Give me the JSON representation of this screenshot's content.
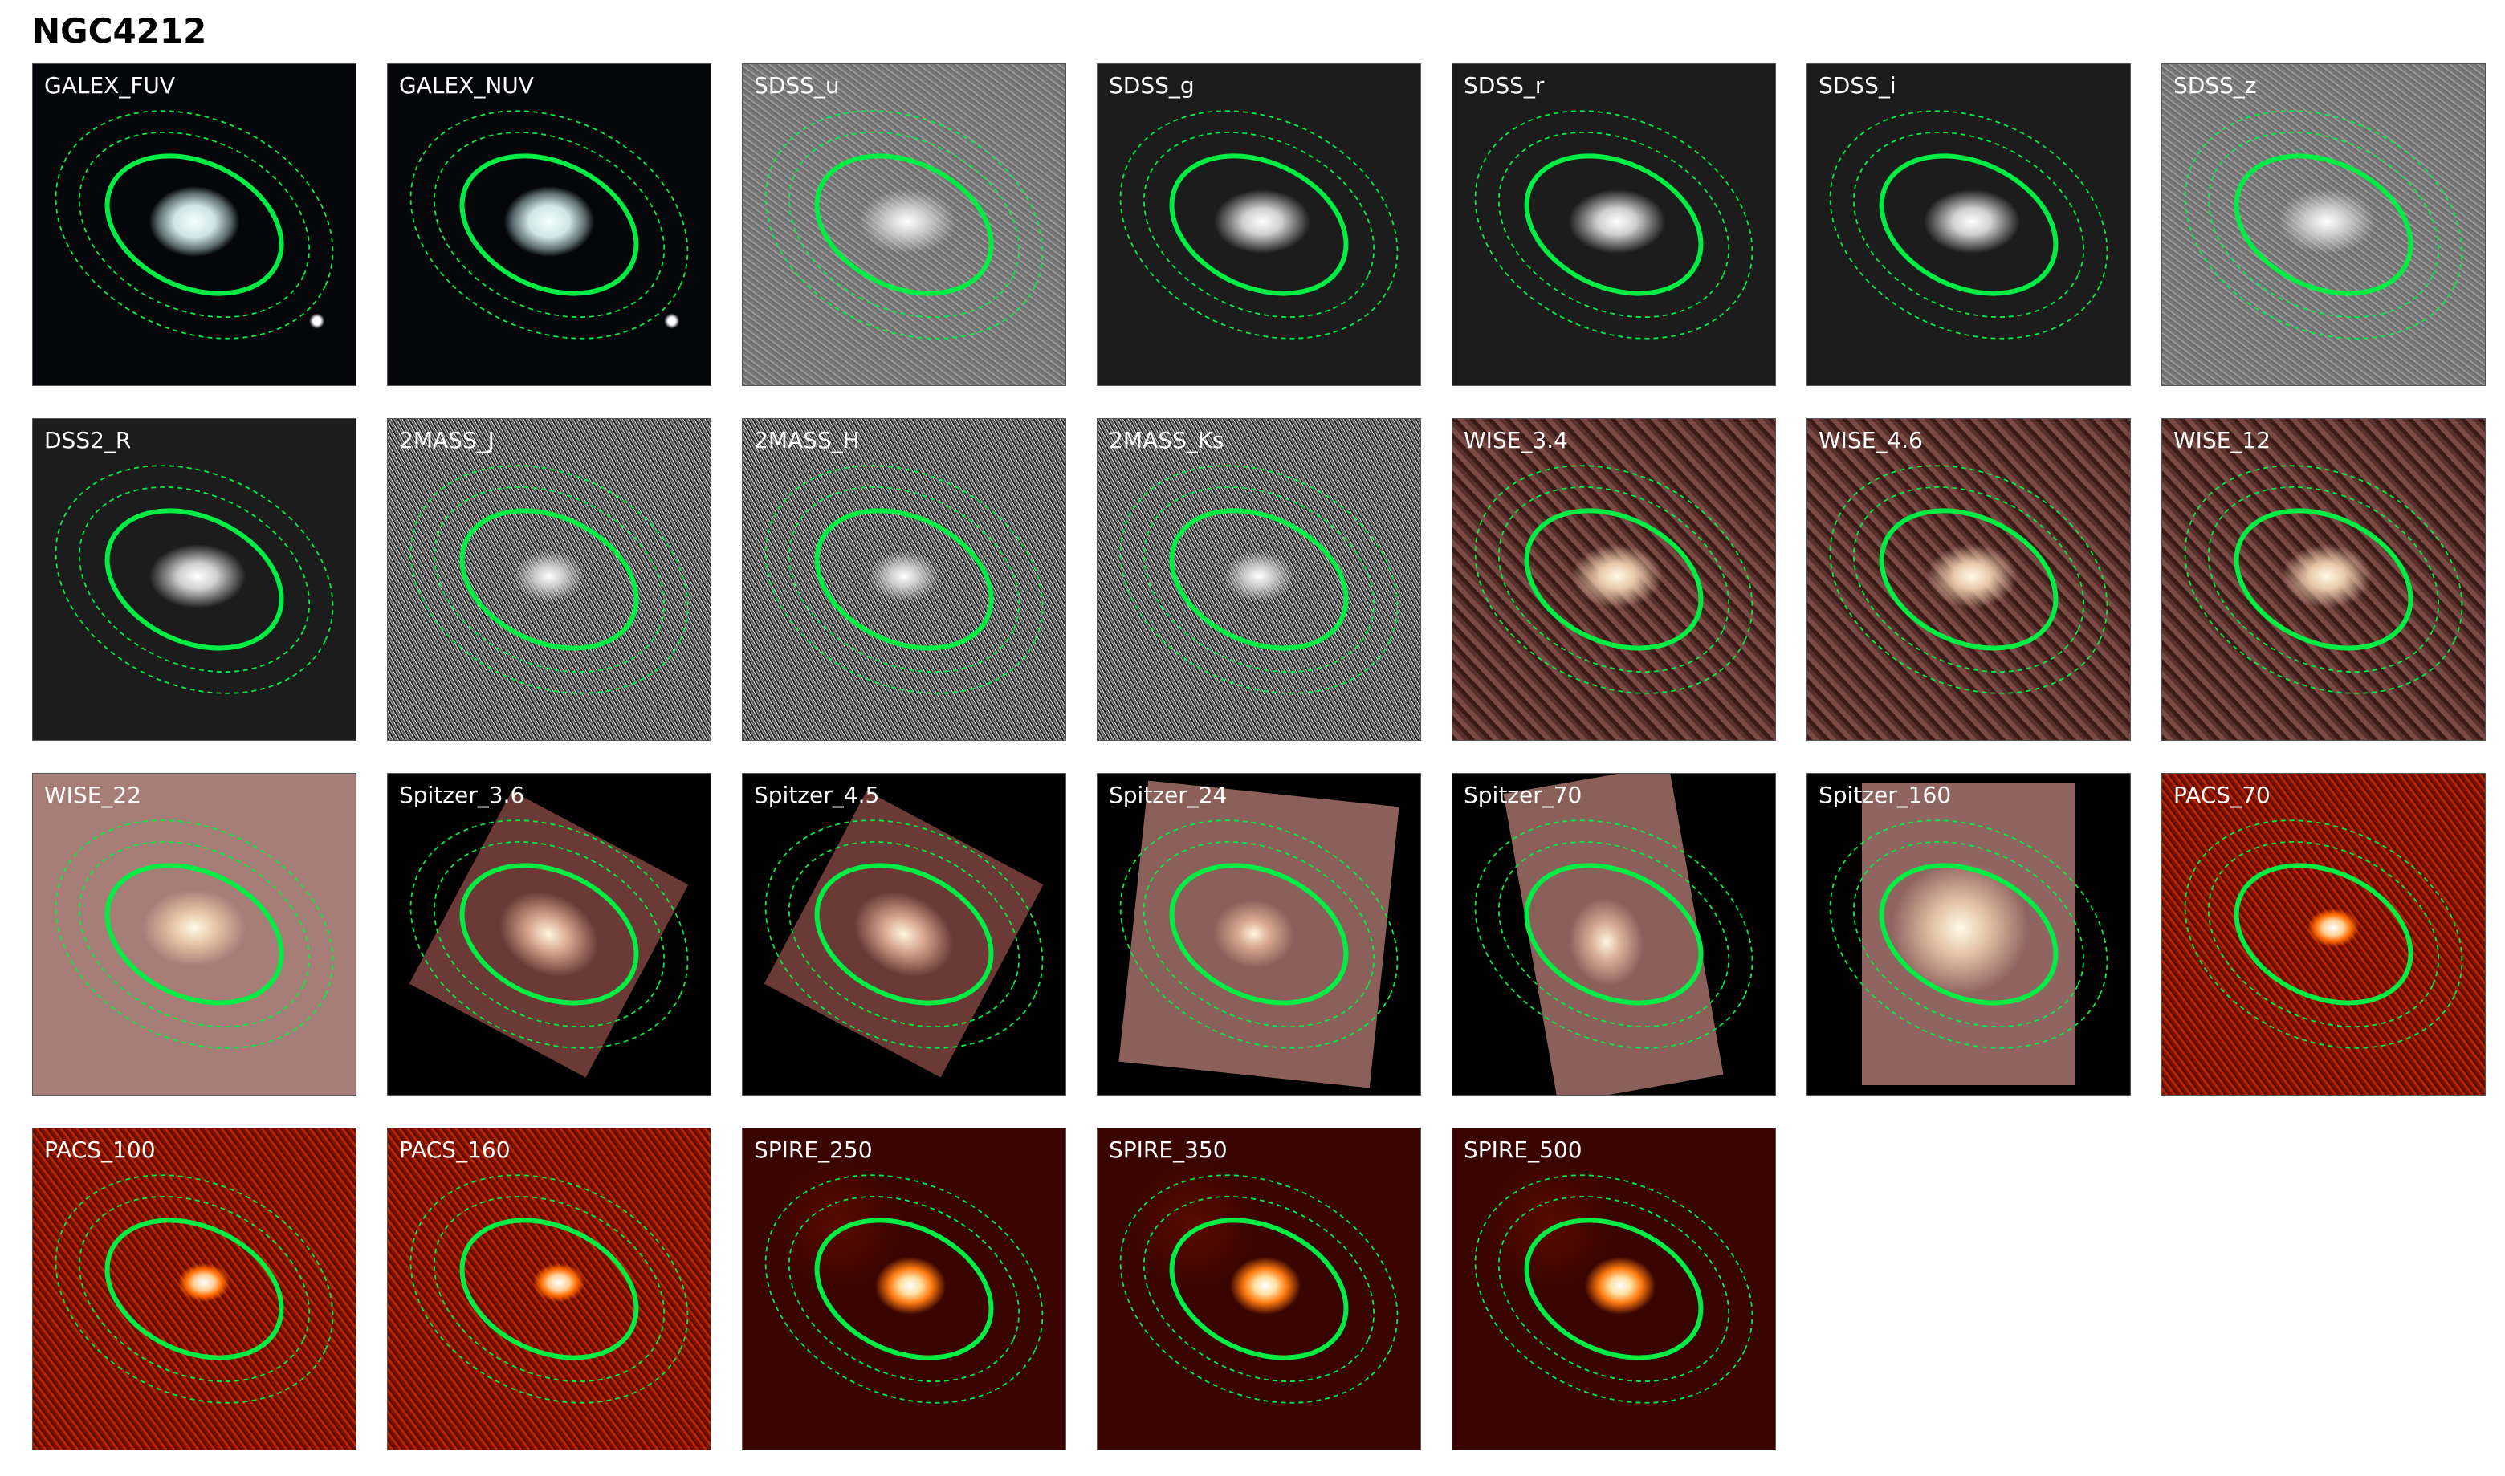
{
  "title": "NGC4212",
  "aperture_color": "#00ee44",
  "panels": [
    {
      "label": "GALEX_FUV",
      "colormap": "galex"
    },
    {
      "label": "GALEX_NUV",
      "colormap": "galex"
    },
    {
      "label": "SDSS_u",
      "colormap": "gray"
    },
    {
      "label": "SDSS_g",
      "colormap": "graydark"
    },
    {
      "label": "SDSS_r",
      "colormap": "graydark"
    },
    {
      "label": "SDSS_i",
      "colormap": "graydark"
    },
    {
      "label": "SDSS_z",
      "colormap": "gray"
    },
    {
      "label": "DSS2_R",
      "colormap": "graydark"
    },
    {
      "label": "2MASS_J",
      "colormap": "graynoise"
    },
    {
      "label": "2MASS_H",
      "colormap": "graynoise"
    },
    {
      "label": "2MASS_Ks",
      "colormap": "graynoise"
    },
    {
      "label": "WISE_3.4",
      "colormap": "wise"
    },
    {
      "label": "WISE_4.6",
      "colormap": "wise"
    },
    {
      "label": "WISE_12",
      "colormap": "wise"
    },
    {
      "label": "WISE_22",
      "colormap": "wise22"
    },
    {
      "label": "Spitzer_3.6",
      "colormap": "spitzer"
    },
    {
      "label": "Spitzer_4.5",
      "colormap": "spitzer"
    },
    {
      "label": "Spitzer_24",
      "colormap": "spitzer"
    },
    {
      "label": "Spitzer_70",
      "colormap": "spitzer"
    },
    {
      "label": "Spitzer_160",
      "colormap": "spitzer"
    },
    {
      "label": "PACS_70",
      "colormap": "pacs"
    },
    {
      "label": "PACS_100",
      "colormap": "pacs"
    },
    {
      "label": "PACS_160",
      "colormap": "pacs"
    },
    {
      "label": "SPIRE_250",
      "colormap": "spire"
    },
    {
      "label": "SPIRE_350",
      "colormap": "spire"
    },
    {
      "label": "SPIRE_500",
      "colormap": "spire"
    }
  ]
}
